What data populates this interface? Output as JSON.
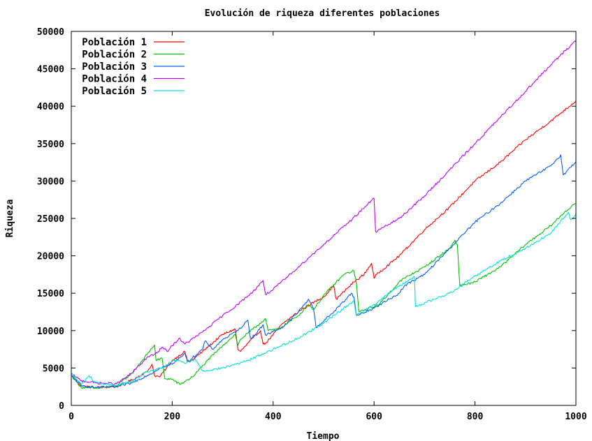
{
  "chart_data": {
    "type": "line",
    "title": "Evolución de riqueza diferentes poblaciones",
    "xlabel": "Tiempo",
    "ylabel": "Riqueza",
    "xlim": [
      0,
      1000
    ],
    "ylim": [
      0,
      50000
    ],
    "xticks": [
      0,
      200,
      400,
      600,
      800,
      1000
    ],
    "yticks": [
      0,
      5000,
      10000,
      15000,
      20000,
      25000,
      30000,
      35000,
      40000,
      45000,
      50000
    ],
    "grid": false,
    "legend_position": "top-left",
    "series": [
      {
        "name": "Población 1",
        "color": "#ff0000",
        "x": [
          0,
          20,
          50,
          90,
          120,
          150,
          160,
          165,
          175,
          200,
          225,
          230,
          235,
          260,
          300,
          325,
          330,
          335,
          360,
          375,
          380,
          385,
          420,
          460,
          500,
          520,
          525,
          560,
          580,
          595,
          600,
          605,
          650,
          700,
          750,
          800,
          850,
          900,
          950,
          1000
        ],
        "y": [
          4000,
          2600,
          2400,
          2500,
          3400,
          4500,
          5500,
          4000,
          3800,
          6000,
          7200,
          6000,
          5800,
          7200,
          9500,
          10200,
          7500,
          7200,
          9000,
          10000,
          8200,
          8300,
          11000,
          13000,
          14500,
          16000,
          14200,
          16500,
          17500,
          19000,
          17000,
          17500,
          20000,
          23500,
          26500,
          30000,
          32500,
          35500,
          38000,
          40700
        ]
      },
      {
        "name": "Población 2",
        "color": "#00c000",
        "x": [
          0,
          20,
          50,
          90,
          120,
          150,
          165,
          168,
          180,
          185,
          200,
          215,
          240,
          270,
          300,
          325,
          330,
          335,
          360,
          385,
          390,
          410,
          450,
          470,
          480,
          500,
          540,
          560,
          565,
          570,
          610,
          650,
          660,
          700,
          750,
          760,
          765,
          770,
          800,
          850,
          900,
          950,
          980,
          1000
        ],
        "y": [
          4000,
          2400,
          2300,
          2600,
          4300,
          6800,
          8100,
          6000,
          6300,
          3600,
          3500,
          2800,
          3800,
          6000,
          8000,
          9500,
          8000,
          8800,
          10200,
          11600,
          10000,
          10200,
          12000,
          13500,
          12800,
          14700,
          17500,
          18000,
          16400,
          12500,
          13500,
          16500,
          17000,
          18500,
          21000,
          22100,
          21500,
          16000,
          16500,
          18500,
          21500,
          24000,
          26000,
          27000
        ]
      },
      {
        "name": "Población 3",
        "color": "#0060ff",
        "x": [
          0,
          20,
          50,
          90,
          120,
          150,
          165,
          175,
          200,
          225,
          230,
          260,
          265,
          280,
          300,
          330,
          350,
          355,
          365,
          380,
          385,
          420,
          450,
          470,
          480,
          485,
          520,
          555,
          560,
          565,
          600,
          650,
          660,
          700,
          750,
          800,
          850,
          900,
          950,
          970,
          975,
          1000
        ],
        "y": [
          4000,
          2600,
          2400,
          2500,
          3000,
          4000,
          4500,
          5000,
          5500,
          7000,
          5800,
          7500,
          8600,
          7500,
          8800,
          10000,
          11400,
          9000,
          9500,
          10800,
          9400,
          10500,
          12500,
          14200,
          13000,
          10400,
          12500,
          15000,
          14500,
          12000,
          13000,
          15000,
          16000,
          17500,
          21000,
          24500,
          27000,
          30000,
          32000,
          33500,
          30800,
          32600
        ]
      },
      {
        "name": "Población 4",
        "color": "#c000ff",
        "x": [
          0,
          20,
          50,
          90,
          120,
          150,
          170,
          180,
          190,
          200,
          215,
          220,
          225,
          260,
          300,
          330,
          360,
          380,
          385,
          400,
          450,
          500,
          550,
          600,
          603,
          650,
          700,
          750,
          800,
          850,
          900,
          950,
          1000
        ],
        "y": [
          4200,
          3300,
          3000,
          2900,
          4300,
          6400,
          7000,
          7800,
          7200,
          8000,
          9000,
          8500,
          8200,
          9800,
          12000,
          13500,
          15200,
          16700,
          14800,
          15500,
          18500,
          21500,
          24500,
          27700,
          23200,
          25000,
          28000,
          31500,
          35000,
          38500,
          42000,
          45500,
          48800
        ]
      },
      {
        "name": "Población 5",
        "color": "#00e0e0",
        "x": [
          0,
          20,
          35,
          45,
          60,
          90,
          120,
          150,
          180,
          200,
          215,
          225,
          245,
          250,
          260,
          300,
          350,
          400,
          450,
          500,
          530,
          550,
          560,
          565,
          600,
          640,
          650,
          665,
          680,
          682,
          700,
          750,
          800,
          850,
          900,
          950,
          985,
          990,
          1000
        ],
        "y": [
          4300,
          2800,
          4000,
          3200,
          2900,
          2700,
          3200,
          4500,
          5000,
          5900,
          6000,
          5600,
          6200,
          5800,
          4600,
          5000,
          6000,
          7500,
          9000,
          11000,
          12500,
          13500,
          14000,
          12000,
          13500,
          15500,
          16000,
          16500,
          17200,
          13200,
          13700,
          15000,
          17300,
          19300,
          21000,
          23000,
          25800,
          24800,
          25600
        ]
      }
    ]
  }
}
